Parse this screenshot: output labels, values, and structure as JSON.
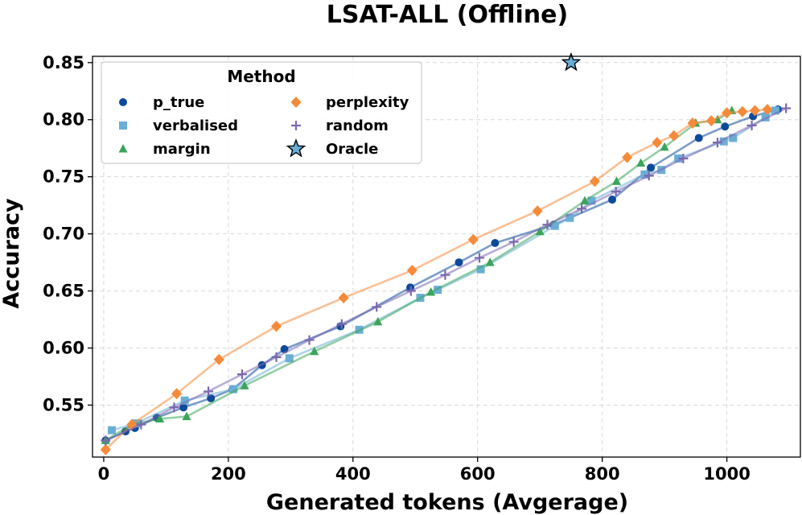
{
  "chart_data": {
    "type": "line",
    "title": "LSAT-ALL (Offline)",
    "xlabel": "Generated tokens (Avgerage)",
    "ylabel": "Accuracy",
    "xlim": [
      -18,
      1118
    ],
    "ylim": [
      0.5045,
      0.8555
    ],
    "xticks": [
      0,
      200,
      400,
      600,
      800,
      1000
    ],
    "yticks": [
      0.55,
      0.6,
      0.65,
      0.7,
      0.75,
      0.8,
      0.85
    ],
    "ytick_labels": [
      "0.55",
      "0.60",
      "0.65",
      "0.70",
      "0.75",
      "0.80",
      "0.85"
    ],
    "grid": true,
    "legend": {
      "title": "Method",
      "position": "upper-left"
    },
    "series": [
      {
        "name": "p_true",
        "color": "#0d4a9a",
        "marker": "circle",
        "x": [
          3,
          35,
          50,
          85,
          128,
          172,
          207,
          254,
          290,
          380,
          492,
          570,
          628,
          722,
          816,
          878,
          955,
          997,
          1042,
          1082
        ],
        "y": [
          0.519,
          0.527,
          0.53,
          0.539,
          0.548,
          0.556,
          0.564,
          0.585,
          0.599,
          0.619,
          0.653,
          0.675,
          0.692,
          0.708,
          0.73,
          0.758,
          0.784,
          0.794,
          0.803,
          0.809
        ]
      },
      {
        "name": "verbalised",
        "color": "#6aaed6",
        "marker": "square",
        "x": [
          13,
          52,
          130,
          208,
          298,
          410,
          508,
          536,
          605,
          724,
          748,
          783,
          868,
          895,
          922,
          995,
          1010,
          1062,
          1078
        ],
        "y": [
          0.528,
          0.534,
          0.554,
          0.564,
          0.591,
          0.616,
          0.644,
          0.651,
          0.669,
          0.707,
          0.714,
          0.729,
          0.752,
          0.756,
          0.766,
          0.781,
          0.784,
          0.802,
          0.808
        ]
      },
      {
        "name": "margin",
        "color": "#3aa55a",
        "marker": "triangle",
        "x": [
          3,
          45,
          90,
          133,
          226,
          338,
          440,
          525,
          620,
          700,
          772,
          823,
          862,
          900,
          950,
          985,
          1008
        ],
        "y": [
          0.519,
          0.533,
          0.538,
          0.54,
          0.567,
          0.597,
          0.623,
          0.649,
          0.675,
          0.702,
          0.729,
          0.746,
          0.762,
          0.776,
          0.797,
          0.8,
          0.808
        ]
      },
      {
        "name": "perplexity",
        "color": "#f58a3a",
        "marker": "diamond",
        "x": [
          3,
          45,
          117,
          185,
          277,
          385,
          495,
          593,
          696,
          788,
          840,
          888,
          915,
          945,
          975,
          1000,
          1025,
          1045,
          1065
        ],
        "y": [
          0.511,
          0.533,
          0.56,
          0.59,
          0.619,
          0.644,
          0.668,
          0.695,
          0.72,
          0.746,
          0.767,
          0.78,
          0.786,
          0.797,
          0.799,
          0.806,
          0.807,
          0.808,
          0.809
        ]
      },
      {
        "name": "random",
        "color": "#7b68b0",
        "marker": "plus",
        "x": [
          3,
          60,
          113,
          168,
          222,
          277,
          330,
          382,
          438,
          493,
          548,
          603,
          658,
          712,
          767,
          822,
          875,
          930,
          985,
          1040,
          1095
        ],
        "y": [
          0.519,
          0.533,
          0.548,
          0.562,
          0.577,
          0.592,
          0.607,
          0.621,
          0.636,
          0.65,
          0.664,
          0.679,
          0.693,
          0.708,
          0.722,
          0.737,
          0.751,
          0.766,
          0.78,
          0.795,
          0.81
        ]
      },
      {
        "name": "Oracle",
        "color": "#6aaed6",
        "marker": "star",
        "x": [
          750
        ],
        "y": [
          0.85
        ]
      }
    ]
  }
}
